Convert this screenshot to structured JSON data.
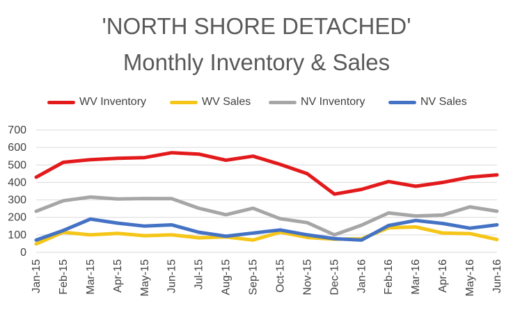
{
  "chart_data": {
    "type": "line",
    "title": "'NORTH SHORE DETACHED'",
    "subtitle": "Monthly Inventory & Sales",
    "xlabel": "",
    "ylabel": "",
    "ylim": [
      0,
      700
    ],
    "yticks": [
      0,
      100,
      200,
      300,
      400,
      500,
      600,
      700
    ],
    "grid": true,
    "legend_position": "top",
    "categories": [
      "Jan-15",
      "Feb-15",
      "Mar-15",
      "Apr-15",
      "May-15",
      "Jun-15",
      "Jul-15",
      "Aug-15",
      "Sep-15",
      "Oct-15",
      "Nov-15",
      "Dec-15",
      "Jan-16",
      "Feb-16",
      "Mar-16",
      "Apr-16",
      "May-16",
      "Jun-16"
    ],
    "series": [
      {
        "name": "WV Inventory",
        "color": "#e31a1c",
        "values": [
          430,
          515,
          530,
          538,
          542,
          570,
          562,
          527,
          550,
          503,
          450,
          333,
          360,
          405,
          378,
          400,
          430,
          443
        ]
      },
      {
        "name": "WV Sales",
        "color": "#f5c518",
        "values": [
          48,
          115,
          100,
          108,
          95,
          100,
          83,
          88,
          70,
          115,
          85,
          75,
          77,
          140,
          145,
          110,
          107,
          73
        ]
      },
      {
        "name": "NV Inventory",
        "color": "#a6a6a6",
        "values": [
          235,
          295,
          316,
          305,
          308,
          307,
          252,
          215,
          252,
          192,
          170,
          100,
          155,
          225,
          208,
          213,
          260,
          235
        ]
      },
      {
        "name": "NV Sales",
        "color": "#4472c4",
        "values": [
          70,
          125,
          190,
          167,
          150,
          157,
          115,
          92,
          110,
          128,
          100,
          78,
          70,
          153,
          182,
          165,
          138,
          157
        ]
      }
    ]
  }
}
